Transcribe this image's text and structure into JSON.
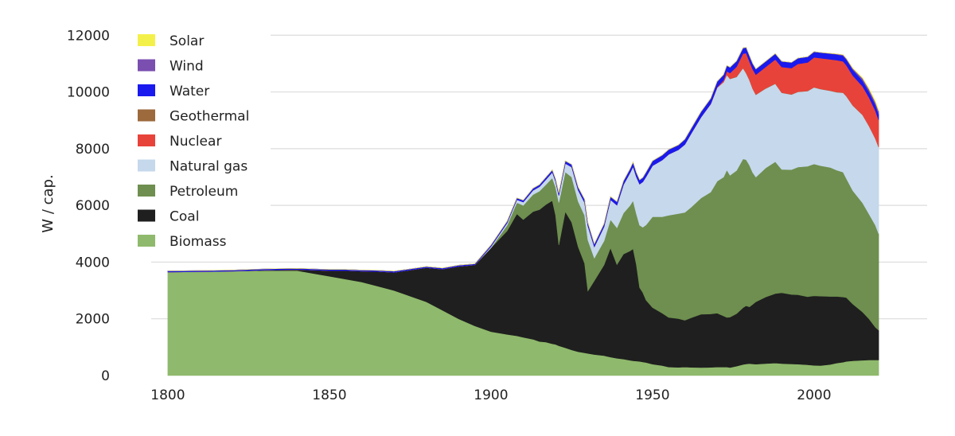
{
  "chart_data": {
    "type": "area",
    "stacked": true,
    "title": "",
    "xlabel": "",
    "ylabel": "W / cap.",
    "xlim": [
      1785,
      2035
    ],
    "ylim": [
      0,
      12400
    ],
    "xticks": [
      1800,
      1850,
      1900,
      1950,
      2000
    ],
    "yticks": [
      0,
      2000,
      4000,
      6000,
      8000,
      10000,
      12000
    ],
    "grid": "horizontal",
    "legend_position": "top-left",
    "x": [
      1800,
      1810,
      1820,
      1830,
      1840,
      1845,
      1850,
      1855,
      1860,
      1865,
      1870,
      1875,
      1880,
      1885,
      1890,
      1895,
      1900,
      1905,
      1908,
      1910,
      1913,
      1915,
      1917,
      1919,
      1920,
      1921,
      1923,
      1925,
      1927,
      1929,
      1930,
      1932,
      1935,
      1937,
      1939,
      1941,
      1943,
      1944,
      1945,
      1946,
      1947,
      1948,
      1950,
      1953,
      1955,
      1958,
      1960,
      1962,
      1965,
      1968,
      1970,
      1972,
      1973,
      1974,
      1976,
      1978,
      1979,
      1980,
      1981,
      1982,
      1985,
      1988,
      1990,
      1993,
      1995,
      1998,
      2000,
      2002,
      2005,
      2007,
      2009,
      2010,
      2012,
      2015,
      2017,
      2019,
      2020
    ],
    "series": [
      {
        "name": "Biomass",
        "color": "#8fb96c",
        "values": [
          3650,
          3660,
          3680,
          3700,
          3700,
          3600,
          3500,
          3400,
          3300,
          3150,
          3000,
          2800,
          2600,
          2300,
          2000,
          1750,
          1550,
          1450,
          1400,
          1350,
          1280,
          1200,
          1180,
          1120,
          1100,
          1050,
          980,
          900,
          840,
          800,
          780,
          740,
          700,
          650,
          610,
          580,
          540,
          520,
          510,
          500,
          480,
          460,
          400,
          350,
          300,
          290,
          300,
          290,
          280,
          290,
          300,
          300,
          300,
          280,
          330,
          390,
          410,
          420,
          410,
          400,
          420,
          440,
          420,
          410,
          400,
          380,
          360,
          350,
          390,
          440,
          470,
          500,
          520,
          540,
          550,
          550,
          550
        ]
      },
      {
        "name": "Coal",
        "color": "#1f1f1f",
        "values": [
          0,
          0,
          0,
          20,
          40,
          120,
          200,
          300,
          380,
          520,
          640,
          920,
          1200,
          1450,
          1850,
          2150,
          2950,
          3650,
          4300,
          4150,
          4500,
          4650,
          4850,
          5050,
          4550,
          3550,
          4800,
          4500,
          3700,
          3150,
          2200,
          2600,
          3200,
          3850,
          3300,
          3700,
          3850,
          3950,
          3400,
          2600,
          2450,
          2200,
          2000,
          1850,
          1750,
          1720,
          1650,
          1750,
          1880,
          1880,
          1900,
          1800,
          1750,
          1780,
          1850,
          2000,
          2050,
          2000,
          2100,
          2200,
          2350,
          2450,
          2500,
          2450,
          2450,
          2400,
          2450,
          2450,
          2400,
          2350,
          2300,
          2250,
          2000,
          1700,
          1450,
          1150,
          1050
        ]
      },
      {
        "name": "Petroleum",
        "color": "#6e8f4f",
        "values": [
          0,
          0,
          0,
          0,
          0,
          0,
          0,
          0,
          0,
          0,
          0,
          0,
          0,
          0,
          0,
          0,
          0,
          200,
          400,
          500,
          600,
          650,
          700,
          800,
          1000,
          1500,
          1400,
          1600,
          1600,
          1700,
          1800,
          800,
          850,
          1000,
          1300,
          1450,
          1600,
          1700,
          1800,
          2200,
          2300,
          2650,
          3200,
          3400,
          3600,
          3700,
          3800,
          3900,
          4100,
          4300,
          4650,
          4900,
          5200,
          5000,
          5050,
          5250,
          5150,
          5000,
          4650,
          4400,
          4550,
          4650,
          4350,
          4400,
          4500,
          4600,
          4650,
          4600,
          4550,
          4450,
          4400,
          4200,
          4000,
          3850,
          3700,
          3600,
          3400
        ]
      },
      {
        "name": "Natural gas",
        "color": "#c5d8ec",
        "values": [
          0,
          0,
          0,
          0,
          0,
          0,
          0,
          0,
          0,
          0,
          0,
          0,
          0,
          0,
          0,
          0,
          50,
          80,
          100,
          120,
          150,
          160,
          180,
          200,
          200,
          250,
          300,
          350,
          400,
          450,
          500,
          400,
          500,
          700,
          800,
          1000,
          1150,
          1200,
          1300,
          1450,
          1600,
          1700,
          1800,
          2000,
          2150,
          2250,
          2400,
          2600,
          2850,
          3100,
          3300,
          3350,
          3350,
          3400,
          3300,
          3200,
          3050,
          3000,
          2950,
          2900,
          2800,
          2750,
          2700,
          2650,
          2650,
          2650,
          2700,
          2700,
          2700,
          2750,
          2800,
          2900,
          3000,
          3100,
          3100,
          3050,
          3050
        ]
      },
      {
        "name": "Geothermal",
        "color": "#9c6a3c",
        "values": [
          0,
          0,
          0,
          0,
          0,
          0,
          0,
          0,
          0,
          0,
          0,
          0,
          0,
          0,
          0,
          0,
          0,
          0,
          0,
          0,
          0,
          0,
          0,
          0,
          0,
          0,
          0,
          0,
          0,
          0,
          0,
          0,
          0,
          0,
          0,
          0,
          0,
          0,
          0,
          0,
          0,
          0,
          0,
          0,
          0,
          0,
          0,
          0,
          0,
          0,
          0,
          0,
          10,
          10,
          10,
          10,
          10,
          10,
          10,
          10,
          10,
          10,
          10,
          10,
          10,
          10,
          10,
          10,
          10,
          10,
          10,
          10,
          10,
          10,
          10,
          10,
          10
        ]
      },
      {
        "name": "Nuclear",
        "color": "#e8433a",
        "values": [
          0,
          0,
          0,
          0,
          0,
          0,
          0,
          0,
          0,
          0,
          0,
          0,
          0,
          0,
          0,
          0,
          0,
          0,
          0,
          0,
          0,
          0,
          0,
          0,
          0,
          0,
          0,
          0,
          0,
          0,
          0,
          0,
          0,
          0,
          0,
          0,
          0,
          0,
          0,
          0,
          0,
          0,
          0,
          0,
          0,
          0,
          0,
          0,
          0,
          10,
          20,
          60,
          120,
          200,
          350,
          500,
          700,
          650,
          680,
          700,
          750,
          850,
          900,
          920,
          980,
          1000,
          1050,
          1080,
          1100,
          1120,
          1100,
          1080,
          1050,
          1000,
          1000,
          980,
          950
        ]
      },
      {
        "name": "Water",
        "color": "#1a1aee",
        "values": [
          40,
          40,
          40,
          40,
          40,
          40,
          40,
          40,
          40,
          40,
          40,
          40,
          40,
          40,
          40,
          40,
          50,
          60,
          60,
          60,
          70,
          70,
          80,
          80,
          80,
          90,
          90,
          90,
          100,
          110,
          110,
          100,
          100,
          110,
          120,
          130,
          140,
          150,
          150,
          150,
          150,
          160,
          170,
          170,
          170,
          170,
          180,
          180,
          190,
          190,
          200,
          200,
          200,
          200,
          200,
          200,
          200,
          200,
          200,
          200,
          200,
          200,
          200,
          200,
          200,
          200,
          200,
          200,
          200,
          200,
          200,
          200,
          200,
          200,
          200,
          200,
          200
        ]
      },
      {
        "name": "Wind",
        "color": "#7a4fb0",
        "values": [
          0,
          0,
          0,
          0,
          0,
          0,
          0,
          0,
          0,
          0,
          0,
          0,
          0,
          0,
          0,
          0,
          0,
          0,
          0,
          0,
          0,
          0,
          0,
          0,
          0,
          0,
          0,
          0,
          0,
          0,
          0,
          0,
          0,
          0,
          0,
          0,
          0,
          0,
          0,
          0,
          0,
          0,
          0,
          0,
          0,
          0,
          0,
          0,
          0,
          0,
          0,
          0,
          0,
          0,
          0,
          0,
          0,
          0,
          0,
          0,
          0,
          0,
          0,
          0,
          0,
          0,
          0,
          0,
          10,
          20,
          30,
          40,
          50,
          80,
          90,
          100,
          110
        ]
      },
      {
        "name": "Solar",
        "color": "#f4f04a",
        "values": [
          0,
          0,
          0,
          0,
          0,
          0,
          0,
          0,
          0,
          0,
          0,
          0,
          0,
          0,
          0,
          0,
          0,
          0,
          0,
          0,
          0,
          0,
          0,
          0,
          0,
          0,
          0,
          0,
          0,
          0,
          0,
          0,
          0,
          0,
          0,
          0,
          0,
          0,
          0,
          0,
          0,
          0,
          0,
          0,
          0,
          0,
          0,
          0,
          0,
          0,
          0,
          0,
          0,
          0,
          0,
          0,
          0,
          0,
          0,
          0,
          0,
          0,
          0,
          0,
          0,
          0,
          0,
          0,
          0,
          0,
          0,
          0,
          10,
          20,
          30,
          40,
          50
        ]
      }
    ],
    "legend_order": [
      "Solar",
      "Wind",
      "Water",
      "Geothermal",
      "Nuclear",
      "Natural gas",
      "Petroleum",
      "Coal",
      "Biomass"
    ]
  }
}
